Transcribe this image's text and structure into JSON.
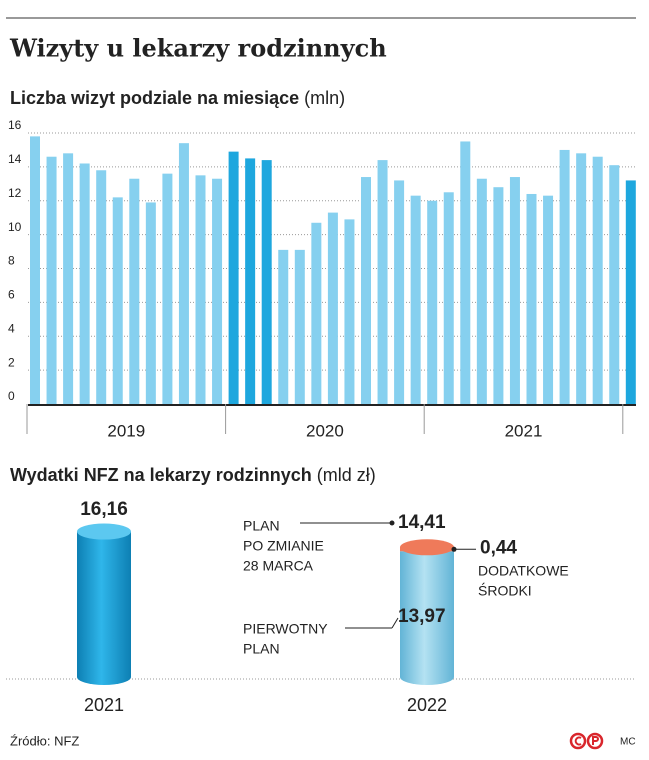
{
  "chart_data": [
    {
      "type": "bar",
      "title": "Wizyty u lekarzy rodzinnych",
      "subtitle": "Liczba wizyt podziale na miesiące",
      "unit": "(mln)",
      "categories": [
        null,
        null,
        null,
        null,
        null,
        null,
        null,
        null,
        null,
        null,
        null,
        null,
        null,
        null,
        null,
        null,
        null,
        null,
        null,
        null,
        null,
        null,
        null,
        null,
        null,
        null,
        null,
        null,
        null,
        null,
        null,
        null,
        null,
        null,
        null,
        null,
        null
      ],
      "values": [
        15.8,
        14.6,
        14.8,
        14.2,
        13.8,
        12.2,
        13.3,
        11.9,
        13.6,
        15.4,
        13.5,
        13.3,
        14.9,
        14.5,
        14.4,
        9.1,
        9.1,
        10.7,
        11.3,
        10.9,
        13.4,
        14.4,
        13.2,
        12.3,
        12.0,
        12.5,
        15.5,
        13.3,
        12.8,
        13.4,
        12.4,
        12.3,
        15.0,
        14.8,
        14.6,
        14.1,
        13.2
      ],
      "x_groups": [
        {
          "label": "2019",
          "count": 12
        },
        {
          "label": "2020",
          "count": 12
        },
        {
          "label": "2021",
          "count": 12
        }
      ],
      "color": "#86d0ef",
      "highlight_color": "#1ea7de",
      "highlight": [
        12,
        13,
        14,
        36
      ],
      "ylim": [
        0,
        16
      ],
      "yticks": [
        0,
        2,
        4,
        6,
        8,
        10,
        12,
        14,
        16
      ],
      "grid": true
    },
    {
      "type": "cylinder",
      "title": "Wydatki NFZ na lekarzy rodzinnych",
      "unit": "(mld zł)",
      "categories": [
        "2021",
        "2022"
      ],
      "series": [
        {
          "name": [
            "PIERWOTNY",
            "PLAN"
          ],
          "colors": [
            "#1a9fd6",
            "#92d1e8"
          ],
          "values": [
            16.16,
            13.97
          ],
          "value_labels": [
            "16,16",
            "13,97"
          ]
        },
        {
          "name": [
            "DODATKOWE",
            "ŚRODKI"
          ],
          "color": "#ef7a5a",
          "values": [
            null,
            0.44
          ],
          "value_labels": [
            null,
            "0,44"
          ]
        }
      ],
      "annotation": {
        "text": [
          "PLAN",
          "PO ZMIANIE",
          "28 MARCA"
        ],
        "value": 14.41,
        "label": "14,41"
      }
    },
    {
      "type": "footer",
      "source": "Źródło: NFZ",
      "author": "MC"
    }
  ]
}
